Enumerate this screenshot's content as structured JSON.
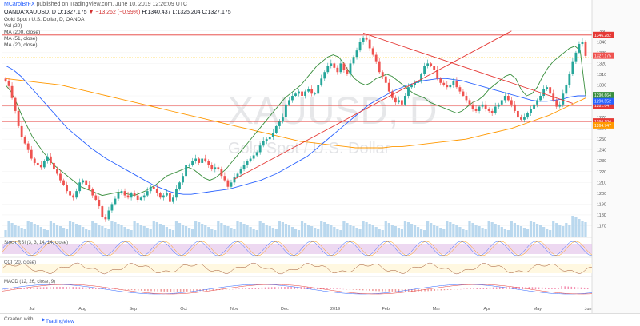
{
  "header": {
    "author": "MCarolBrFX",
    "published": "published on TradingView.com, June 10, 2019 12:26:09 UTC",
    "symbol_line": "OANDA:XAUUSD, D",
    "o_label": "O:",
    "o": "1327.175",
    "change": "▼ −13.262 (−0.99%)",
    "h_label": "H:",
    "h": "1340.437",
    "l_label": "L:",
    "l": "1325.204",
    "c_label": "C:",
    "c": "1327.175",
    "title": "Gold Spot / U.S. Dollar, D, OANDA",
    "vol": "Vol (20)",
    "ma200": "MA (200, close)",
    "ma51": "MA (51, close)",
    "ma20": "MA (20, close)"
  },
  "watermark": {
    "big": "XAUUSD, D",
    "small": "Gold Spot / U.S. Dollar"
  },
  "panes": {
    "stoch": "Stoch RSI (3, 3, 14, 14, close)",
    "cci": "CCI (20, close)",
    "macd": "MACD (12, 26, close, 9)"
  },
  "footer": {
    "created": "Created with",
    "brand": "TradingView"
  },
  "chart_data": {
    "type": "candlestick",
    "y_range": [
      1160,
      1355
    ],
    "y_ticks": [
      1170,
      1180,
      1190,
      1200,
      1210,
      1220,
      1230,
      1240,
      1250,
      1260,
      1270,
      1280,
      1290,
      1300,
      1310,
      1320,
      1330,
      1340,
      1350
    ],
    "x_labels": [
      "Jul",
      "Aug",
      "Sep",
      "Oct",
      "Nov",
      "Dec",
      "2019",
      "Feb",
      "Mar",
      "Apr",
      "May",
      "Jun"
    ],
    "horizontal_levels": [
      {
        "value": 1346.282,
        "label": "1346.282",
        "color": "#e53935"
      },
      {
        "value": 1281.047,
        "label": "1281.047",
        "color": "#e53935"
      },
      {
        "value": 1266.284,
        "label": "1266.284",
        "color": "#e53935"
      }
    ],
    "price_labels": [
      {
        "value": 1327.175,
        "label": "1327.175",
        "color": "#ef5350"
      },
      {
        "value": 1290.664,
        "label": "1290.664",
        "color": "#388e3c"
      },
      {
        "value": 1285.062,
        "label": "1290.552",
        "color": "#2962ff"
      },
      {
        "value": 1262.747,
        "label": "1264.747",
        "color": "#ff9800"
      }
    ],
    "dotted_level": 1327.175,
    "closes": [
      1304,
      1299,
      1288,
      1276,
      1262,
      1252,
      1246,
      1240,
      1232,
      1228,
      1226,
      1224,
      1230,
      1234,
      1228,
      1222,
      1218,
      1212,
      1208,
      1202,
      1198,
      1196,
      1202,
      1210,
      1212,
      1208,
      1204,
      1198,
      1194,
      1188,
      1178,
      1176,
      1184,
      1190,
      1195,
      1200,
      1202,
      1198,
      1196,
      1200,
      1198,
      1194,
      1196,
      1198,
      1202,
      1206,
      1204,
      1200,
      1196,
      1198,
      1200,
      1192,
      1196,
      1204,
      1210,
      1216,
      1226,
      1226,
      1230,
      1232,
      1228,
      1232,
      1230,
      1226,
      1222,
      1224,
      1222,
      1216,
      1212,
      1206,
      1210,
      1215,
      1218,
      1222,
      1226,
      1230,
      1232,
      1235,
      1238,
      1244,
      1248,
      1250,
      1252,
      1256,
      1262,
      1266,
      1270,
      1282,
      1286,
      1290,
      1292,
      1294,
      1290,
      1294,
      1296,
      1292,
      1292,
      1300,
      1306,
      1312,
      1318,
      1320,
      1316,
      1312,
      1320,
      1314,
      1310,
      1320,
      1326,
      1332,
      1340,
      1344,
      1342,
      1334,
      1328,
      1322,
      1312,
      1308,
      1302,
      1294,
      1288,
      1284,
      1286,
      1282,
      1290,
      1298,
      1300,
      1302,
      1304,
      1310,
      1318,
      1320,
      1318,
      1314,
      1306,
      1302,
      1300,
      1298,
      1300,
      1304,
      1298,
      1294,
      1290,
      1286,
      1282,
      1278,
      1276,
      1280,
      1282,
      1278,
      1276,
      1274,
      1280,
      1282,
      1286,
      1290,
      1286,
      1282,
      1276,
      1270,
      1268,
      1270,
      1274,
      1278,
      1282,
      1286,
      1290,
      1296,
      1298,
      1292,
      1286,
      1280,
      1282,
      1292,
      1300,
      1310,
      1322,
      1330,
      1338,
      1340,
      1327
    ],
    "ma200": [
      1306,
      1305,
      1304,
      1303,
      1302,
      1301,
      1300,
      1298,
      1296,
      1294,
      1292,
      1290,
      1288,
      1286,
      1284,
      1282,
      1280,
      1278,
      1276,
      1274,
      1272,
      1270,
      1268,
      1266,
      1264,
      1262,
      1260,
      1258,
      1256,
      1254,
      1252,
      1250,
      1248,
      1247,
      1246,
      1245,
      1244,
      1243,
      1242,
      1242,
      1242,
      1242,
      1243,
      1243,
      1244,
      1245,
      1246,
      1247,
      1248,
      1249,
      1250,
      1252,
      1254,
      1256,
      1258,
      1260,
      1263,
      1266,
      1269,
      1272,
      1276,
      1280,
      1284,
      1288
    ],
    "ma51": [
      1318,
      1314,
      1308,
      1300,
      1292,
      1284,
      1276,
      1268,
      1260,
      1254,
      1248,
      1242,
      1237,
      1232,
      1228,
      1224,
      1220,
      1216,
      1212,
      1208,
      1205,
      1202,
      1200,
      1199,
      1199,
      1200,
      1201,
      1202,
      1203,
      1204,
      1206,
      1208,
      1210,
      1212,
      1215,
      1218,
      1222,
      1226,
      1230,
      1234,
      1240,
      1246,
      1252,
      1258,
      1264,
      1270,
      1276,
      1282,
      1286,
      1290,
      1294,
      1297,
      1300,
      1302,
      1304,
      1305,
      1306,
      1306,
      1305,
      1304,
      1302,
      1300,
      1298,
      1296,
      1294,
      1292,
      1290,
      1288,
      1286,
      1285,
      1285,
      1286,
      1287,
      1289,
      1290,
      1290
    ],
    "ma20": [
      1300,
      1294,
      1284,
      1272,
      1262,
      1252,
      1245,
      1238,
      1232,
      1226,
      1222,
      1218,
      1214,
      1210,
      1206,
      1204,
      1202,
      1200,
      1198,
      1199,
      1200,
      1201,
      1200,
      1199,
      1198,
      1200,
      1202,
      1205,
      1208,
      1212,
      1216,
      1218,
      1220,
      1222,
      1224,
      1222,
      1218,
      1214,
      1212,
      1214,
      1218,
      1222,
      1228,
      1234,
      1240,
      1246,
      1252,
      1258,
      1264,
      1270,
      1276,
      1282,
      1288,
      1292,
      1296,
      1300,
      1306,
      1312,
      1318,
      1322,
      1326,
      1328,
      1326,
      1320,
      1312,
      1306,
      1302,
      1300,
      1302,
      1306,
      1308,
      1310,
      1308,
      1304,
      1300,
      1296,
      1292,
      1290,
      1288,
      1284,
      1282,
      1280,
      1278,
      1276,
      1274,
      1276,
      1280,
      1284,
      1286,
      1290,
      1296,
      1300,
      1304,
      1308,
      1310,
      1306,
      1296,
      1290,
      1292,
      1298,
      1308,
      1316,
      1322,
      1326,
      1330,
      1334,
      1336,
      1332,
      1290
    ]
  },
  "colors": {
    "up": "#26a69a",
    "down": "#ef5350",
    "ma200": "#ff9800",
    "ma51": "#2962ff",
    "ma20": "#388e3c",
    "trend": "#e53935",
    "stoch_bg": "#e1bee7",
    "cci_bg": "#fff8e1",
    "vol": "#b3d4ec"
  }
}
